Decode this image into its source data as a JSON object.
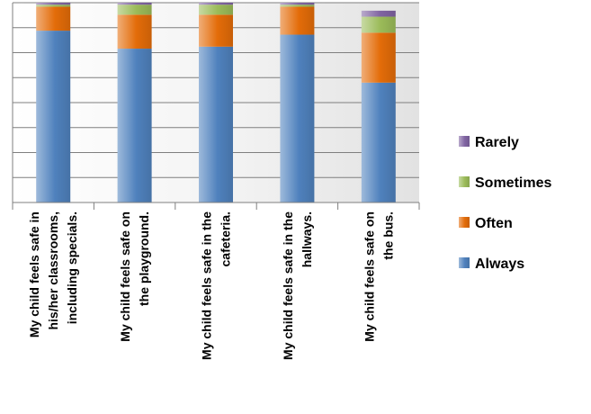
{
  "chart_data": {
    "type": "bar",
    "stacked": true,
    "title": "",
    "xlabel": "",
    "ylabel": "",
    "ylim": [
      0,
      100
    ],
    "grid": true,
    "legend_position": "right",
    "categories": [
      [
        "My child feels safe in",
        "his/her classrooms,",
        "including specials."
      ],
      [
        "My child feels safe on",
        "the playground."
      ],
      [
        "My child feels safe in the",
        "cafeteria."
      ],
      [
        "My child feels safe in the",
        "hallways."
      ],
      [
        "My child feels safe on",
        "the bus."
      ]
    ],
    "series": [
      {
        "name": "Always",
        "color": "#4F81BD",
        "values": [
          86,
          77,
          78,
          84,
          60
        ]
      },
      {
        "name": "Often",
        "color": "#E36C09",
        "values": [
          12,
          17,
          16,
          14,
          25
        ]
      },
      {
        "name": "Sometimes",
        "color": "#9BBB59",
        "values": [
          1,
          5,
          5,
          1,
          8
        ]
      },
      {
        "name": "Rarely",
        "color": "#8064A2",
        "values": [
          1,
          1,
          1,
          1,
          3
        ]
      }
    ],
    "legend_order": [
      "Rarely",
      "Sometimes",
      "Often",
      "Always"
    ]
  }
}
